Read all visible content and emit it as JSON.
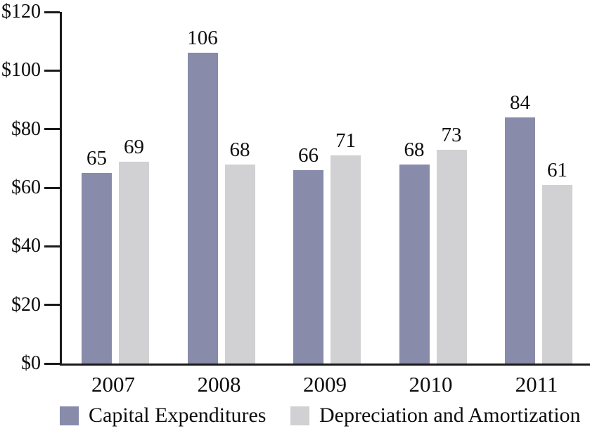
{
  "chart_data": {
    "type": "bar",
    "title": "",
    "categories": [
      "2007",
      "2008",
      "2009",
      "2010",
      "2011"
    ],
    "series": [
      {
        "name": "Capital Expenditures",
        "color": "#898bab",
        "values": [
          65,
          106,
          66,
          68,
          84
        ]
      },
      {
        "name": "Depreciation and Amortization",
        "color": "#d1d1d3",
        "values": [
          69,
          68,
          71,
          73,
          61
        ]
      }
    ],
    "y_axis": {
      "min": 0,
      "max": 120,
      "step": 20,
      "tick_labels": [
        "$0",
        "$20",
        "$40",
        "$60",
        "$80",
        "$100",
        "$120"
      ],
      "prefix": "$"
    },
    "x_axis": {
      "tick_labels": [
        "2007",
        "2008",
        "2009",
        "2010",
        "2011"
      ]
    },
    "value_labels_shown": true,
    "grid": false,
    "legend_position": "bottom",
    "axis_color": "#1a1a1a",
    "text_color": "#0d0d0d",
    "background_color": "#ffffff"
  }
}
